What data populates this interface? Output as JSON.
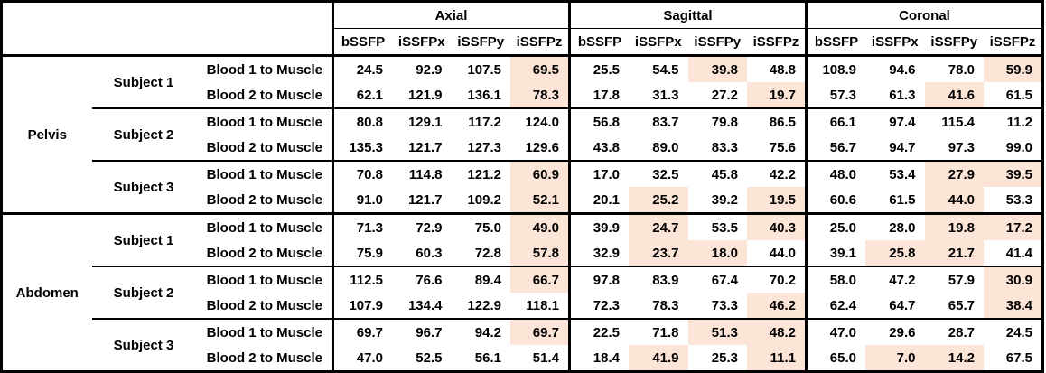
{
  "table": {
    "corner_label": "",
    "plane_groups": [
      {
        "label": "Axial"
      },
      {
        "label": "Sagittal"
      },
      {
        "label": "Coronal"
      }
    ],
    "sub_columns": [
      "bSSFP",
      "iSSFPx",
      "iSSFPy",
      "iSSFPz"
    ],
    "highlight_color": "#FCE4D6",
    "regions": [
      {
        "label": "Pelvis",
        "subjects": [
          {
            "label": "Subject 1",
            "rows": [
              {
                "label": "Blood 1 to Muscle",
                "values": [
                  "24.5",
                  "92.9",
                  "107.5",
                  "69.5",
                  "25.5",
                  "54.5",
                  "39.8",
                  "48.8",
                  "108.9",
                  "94.6",
                  "78.0",
                  "59.9"
                ],
                "highlighted": [
                  3,
                  6,
                  11
                ]
              },
              {
                "label": "Blood 2 to Muscle",
                "values": [
                  "62.1",
                  "121.9",
                  "136.1",
                  "78.3",
                  "17.8",
                  "31.3",
                  "27.2",
                  "19.7",
                  "57.3",
                  "61.3",
                  "41.6",
                  "61.5"
                ],
                "highlighted": [
                  3,
                  7,
                  10
                ]
              }
            ]
          },
          {
            "label": "Subject 2",
            "rows": [
              {
                "label": "Blood 1 to Muscle",
                "values": [
                  "80.8",
                  "129.1",
                  "117.2",
                  "124.0",
                  "56.8",
                  "83.7",
                  "79.8",
                  "86.5",
                  "66.1",
                  "97.4",
                  "115.4",
                  "11.2"
                ],
                "highlighted": []
              },
              {
                "label": "Blood 2 to Muscle",
                "values": [
                  "135.3",
                  "121.7",
                  "127.3",
                  "129.6",
                  "43.8",
                  "89.0",
                  "83.3",
                  "75.6",
                  "56.7",
                  "94.7",
                  "97.3",
                  "99.0"
                ],
                "highlighted": []
              }
            ]
          },
          {
            "label": "Subject 3",
            "rows": [
              {
                "label": "Blood 1 to Muscle",
                "values": [
                  "70.8",
                  "114.8",
                  "121.2",
                  "60.9",
                  "17.0",
                  "32.5",
                  "45.8",
                  "42.2",
                  "48.0",
                  "53.4",
                  "27.9",
                  "39.5"
                ],
                "highlighted": [
                  3,
                  10,
                  11
                ]
              },
              {
                "label": "Blood 2 to Muscle",
                "values": [
                  "91.0",
                  "121.7",
                  "109.2",
                  "52.1",
                  "20.1",
                  "25.2",
                  "39.2",
                  "19.5",
                  "60.6",
                  "61.5",
                  "44.0",
                  "53.3"
                ],
                "highlighted": [
                  3,
                  5,
                  7,
                  10
                ]
              }
            ]
          }
        ]
      },
      {
        "label": "Abdomen",
        "subjects": [
          {
            "label": "Subject 1",
            "rows": [
              {
                "label": "Blood 1 to Muscle",
                "values": [
                  "71.3",
                  "72.9",
                  "75.0",
                  "49.0",
                  "39.9",
                  "24.7",
                  "53.5",
                  "40.3",
                  "25.0",
                  "28.0",
                  "19.8",
                  "17.2"
                ],
                "highlighted": [
                  3,
                  5,
                  7,
                  10,
                  11
                ]
              },
              {
                "label": "Blood 2 to Muscle",
                "values": [
                  "75.9",
                  "60.3",
                  "72.8",
                  "57.8",
                  "32.9",
                  "23.7",
                  "18.0",
                  "44.0",
                  "39.1",
                  "25.8",
                  "21.7",
                  "41.4"
                ],
                "highlighted": [
                  3,
                  5,
                  6,
                  9,
                  10
                ]
              }
            ]
          },
          {
            "label": "Subject 2",
            "rows": [
              {
                "label": "Blood 1 to Muscle",
                "values": [
                  "112.5",
                  "76.6",
                  "89.4",
                  "66.7",
                  "97.8",
                  "83.9",
                  "67.4",
                  "70.2",
                  "58.0",
                  "47.2",
                  "57.9",
                  "30.9"
                ],
                "highlighted": [
                  3,
                  11
                ]
              },
              {
                "label": "Blood 2 to Muscle",
                "values": [
                  "107.9",
                  "134.4",
                  "122.9",
                  "118.1",
                  "72.3",
                  "78.3",
                  "73.3",
                  "46.2",
                  "62.4",
                  "64.7",
                  "65.7",
                  "38.4"
                ],
                "highlighted": [
                  7,
                  11
                ]
              }
            ]
          },
          {
            "label": "Subject 3",
            "rows": [
              {
                "label": "Blood 1 to Muscle",
                "values": [
                  "69.7",
                  "96.7",
                  "94.2",
                  "69.7",
                  "22.5",
                  "71.8",
                  "51.3",
                  "48.2",
                  "47.0",
                  "29.6",
                  "28.7",
                  "24.5"
                ],
                "highlighted": [
                  3,
                  6,
                  7
                ]
              },
              {
                "label": "Blood 2 to Muscle",
                "values": [
                  "47.0",
                  "52.5",
                  "56.1",
                  "51.4",
                  "18.4",
                  "41.9",
                  "25.3",
                  "11.1",
                  "65.0",
                  "7.0",
                  "14.2",
                  "67.5"
                ],
                "highlighted": [
                  5,
                  7,
                  9,
                  10
                ]
              }
            ]
          }
        ]
      }
    ]
  }
}
